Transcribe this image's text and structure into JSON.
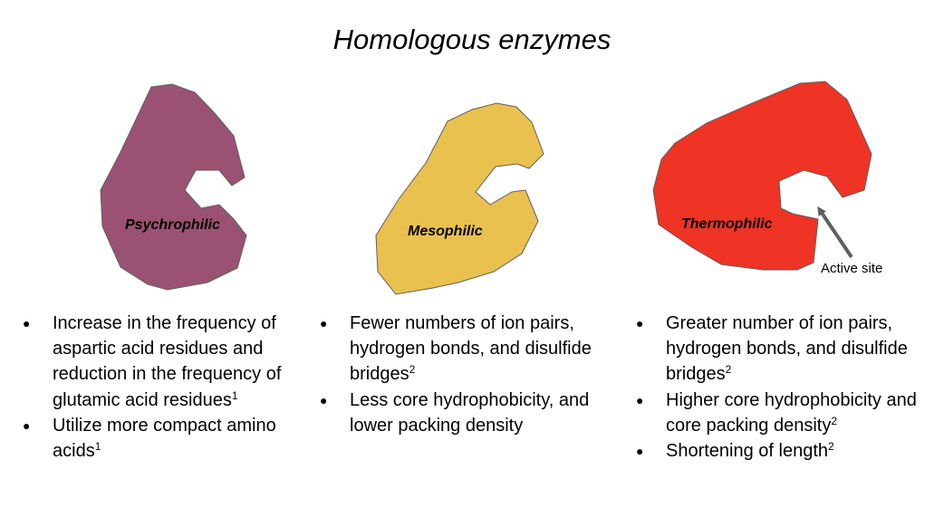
{
  "title": "Homologous enzymes",
  "colors": {
    "psychrophilic": "#9b5272",
    "mesophilic": "#e9c14f",
    "thermophilic": "#ef3324",
    "outline": "#5f5f5f",
    "arrow": "#5f5f5f"
  },
  "enzymes": [
    {
      "label": "Psychrophilic",
      "bullets": [
        {
          "text": "Increase in the frequency of aspartic acid residues and reduction in the frequency of glutamic acid residues",
          "ref": "1"
        },
        {
          "text": "Utilize more compact amino acids",
          "ref": "1"
        }
      ]
    },
    {
      "label": "Mesophilic",
      "bullets": [
        {
          "text": "Fewer numbers of ion pairs, hydrogen bonds, and disulfide bridges",
          "ref": "2"
        },
        {
          "text": "Less core hydrophobicity, and lower packing density",
          "ref": ""
        }
      ]
    },
    {
      "label": "Thermophilic",
      "bullets": [
        {
          "text": "Greater number of  ion pairs, hydrogen bonds, and disulfide bridges",
          "ref": "2"
        },
        {
          "text": "Higher core hydrophobicity and core packing density",
          "ref": "2"
        },
        {
          "text": "Shortening of length",
          "ref": "2"
        }
      ]
    }
  ],
  "annotation": {
    "active_site": "Active site"
  }
}
